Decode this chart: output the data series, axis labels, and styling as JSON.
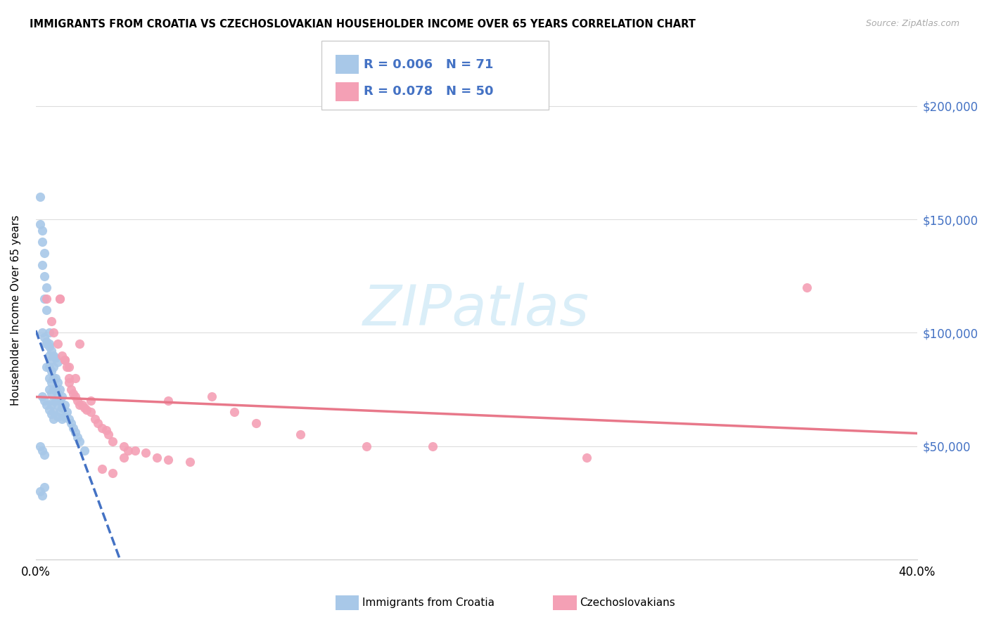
{
  "title": "IMMIGRANTS FROM CROATIA VS CZECHOSLOVAKIAN HOUSEHOLDER INCOME OVER 65 YEARS CORRELATION CHART",
  "source": "Source: ZipAtlas.com",
  "ylabel": "Householder Income Over 65 years",
  "xlim": [
    0.0,
    0.4
  ],
  "ylim": [
    0,
    220000
  ],
  "yticks": [
    0,
    50000,
    100000,
    150000,
    200000
  ],
  "ytick_labels": [
    "",
    "$50,000",
    "$100,000",
    "$150,000",
    "$200,000"
  ],
  "xticks": [
    0.0,
    0.08,
    0.16,
    0.24,
    0.32,
    0.4
  ],
  "legend1_r": "0.006",
  "legend1_n": "71",
  "legend2_r": "0.078",
  "legend2_n": "50",
  "croatia_color": "#a8c8e8",
  "czech_color": "#f4a0b5",
  "croatia_line_color": "#4472c4",
  "czech_line_color": "#e8788a",
  "watermark_color": "#daeef8",
  "croatia_x": [
    0.002,
    0.002,
    0.002,
    0.003,
    0.003,
    0.003,
    0.003,
    0.004,
    0.004,
    0.004,
    0.004,
    0.005,
    0.005,
    0.005,
    0.005,
    0.006,
    0.006,
    0.006,
    0.006,
    0.006,
    0.006,
    0.007,
    0.007,
    0.007,
    0.007,
    0.007,
    0.008,
    0.008,
    0.008,
    0.008,
    0.008,
    0.009,
    0.009,
    0.009,
    0.01,
    0.01,
    0.01,
    0.01,
    0.011,
    0.011,
    0.011,
    0.012,
    0.012,
    0.012,
    0.013,
    0.013,
    0.014,
    0.015,
    0.016,
    0.017,
    0.018,
    0.019,
    0.02,
    0.022,
    0.003,
    0.004,
    0.005,
    0.006,
    0.007,
    0.008,
    0.009,
    0.01,
    0.003,
    0.004,
    0.005,
    0.006,
    0.007,
    0.008,
    0.002,
    0.003,
    0.004
  ],
  "croatia_y": [
    160000,
    148000,
    30000,
    145000,
    140000,
    130000,
    28000,
    135000,
    125000,
    115000,
    32000,
    120000,
    110000,
    95000,
    85000,
    100000,
    95000,
    90000,
    85000,
    80000,
    75000,
    88000,
    83000,
    78000,
    73000,
    68000,
    85000,
    80000,
    75000,
    70000,
    65000,
    80000,
    75000,
    70000,
    78000,
    73000,
    68000,
    63000,
    75000,
    70000,
    65000,
    72000,
    67000,
    62000,
    68000,
    63000,
    65000,
    62000,
    60000,
    58000,
    56000,
    54000,
    52000,
    48000,
    100000,
    98000,
    96000,
    94000,
    92000,
    90000,
    89000,
    87000,
    72000,
    70000,
    68000,
    66000,
    64000,
    62000,
    50000,
    48000,
    46000
  ],
  "czech_x": [
    0.005,
    0.007,
    0.01,
    0.011,
    0.011,
    0.013,
    0.013,
    0.014,
    0.015,
    0.015,
    0.016,
    0.017,
    0.018,
    0.019,
    0.02,
    0.021,
    0.022,
    0.023,
    0.025,
    0.027,
    0.028,
    0.03,
    0.032,
    0.033,
    0.035,
    0.04,
    0.042,
    0.045,
    0.05,
    0.055,
    0.06,
    0.07,
    0.08,
    0.09,
    0.1,
    0.12,
    0.15,
    0.18,
    0.25,
    0.35,
    0.008,
    0.012,
    0.015,
    0.018,
    0.02,
    0.025,
    0.03,
    0.035,
    0.04,
    0.06
  ],
  "czech_y": [
    115000,
    105000,
    95000,
    115000,
    115000,
    88000,
    88000,
    85000,
    80000,
    78000,
    75000,
    73000,
    72000,
    70000,
    68000,
    68000,
    67000,
    66000,
    65000,
    62000,
    60000,
    58000,
    57000,
    55000,
    52000,
    50000,
    48000,
    48000,
    47000,
    45000,
    44000,
    43000,
    72000,
    65000,
    60000,
    55000,
    50000,
    50000,
    45000,
    120000,
    100000,
    90000,
    85000,
    80000,
    95000,
    70000,
    40000,
    38000,
    45000,
    70000
  ]
}
